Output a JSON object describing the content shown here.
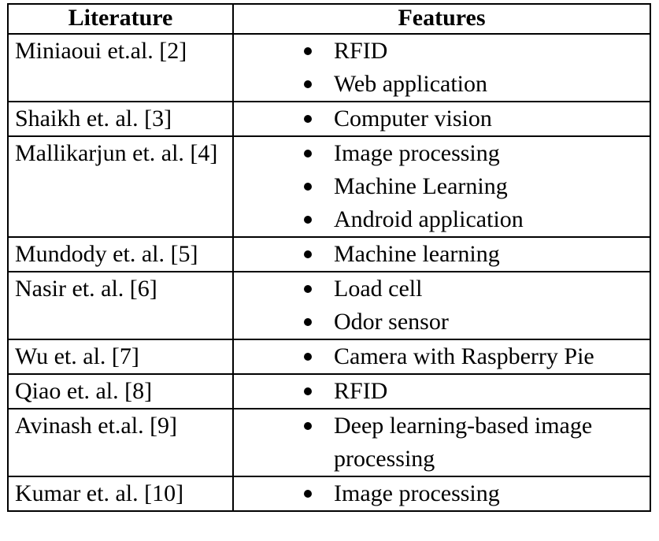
{
  "table": {
    "headers": {
      "literature": "Literature",
      "features": "Features"
    },
    "rows": [
      {
        "lit": "Miniaoui et.al. [2]",
        "features": [
          "RFID",
          "Web application"
        ]
      },
      {
        "lit": "Shaikh et. al. [3]",
        "features": [
          "Computer vision"
        ]
      },
      {
        "lit": "Mallikarjun et. al. [4]",
        "features": [
          "Image processing",
          "Machine Learning",
          "Android application"
        ]
      },
      {
        "lit": "Mundody et. al. [5]",
        "features": [
          "Machine learning"
        ]
      },
      {
        "lit": "Nasir et. al. [6]",
        "features": [
          "Load cell",
          "Odor sensor"
        ]
      },
      {
        "lit": "Wu et. al. [7]",
        "features": [
          "Camera with Raspberry Pie"
        ]
      },
      {
        "lit": "Qiao et. al. [8]",
        "features": [
          "RFID"
        ]
      },
      {
        "lit": "Avinash et.al. [9]",
        "features": [
          "Deep learning-based image processing"
        ]
      },
      {
        "lit": "Kumar et. al. [10]",
        "features": [
          "Image processing"
        ]
      }
    ]
  }
}
